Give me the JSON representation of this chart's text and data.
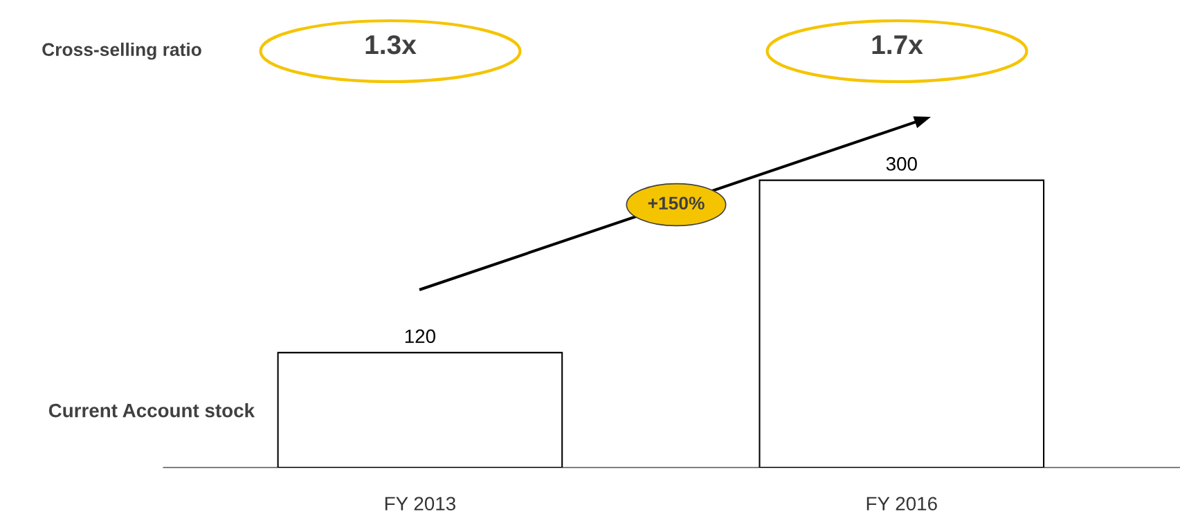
{
  "chart_data": {
    "type": "bar",
    "categories": [
      "FY 2013",
      "FY 2016"
    ],
    "values": [
      120,
      300
    ],
    "color": "#ffffff",
    "data_labels": true,
    "ylabel": "Current Account stock",
    "grid": false,
    "legend": false,
    "tick_labels": "x",
    "annotations": [
      "Cross-selling ratio",
      "1.3x",
      "1.7x",
      "+150%"
    ]
  }
}
